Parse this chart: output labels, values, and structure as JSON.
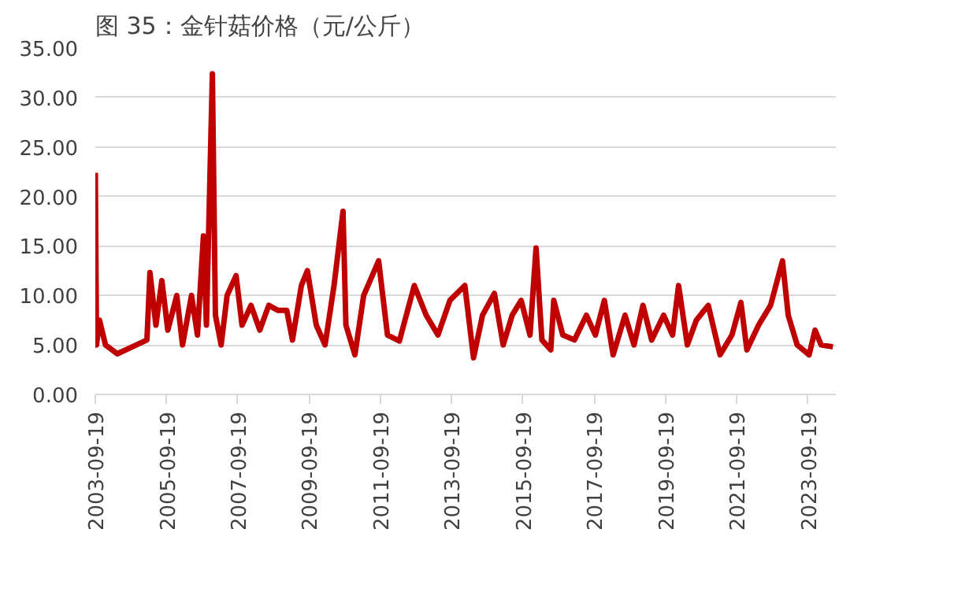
{
  "chart_data": {
    "type": "line",
    "title": "图 35：金针菇价格（元/公斤）",
    "x": [
      "2003-09-19",
      "2003-10",
      "2003-11",
      "2004-01",
      "2004-05",
      "2005-03",
      "2005-04",
      "2005-06",
      "2005-08",
      "2005-10",
      "2006-01",
      "2006-03",
      "2006-06",
      "2006-08",
      "2006-10",
      "2006-11",
      "2007-01",
      "2007-02",
      "2007-04",
      "2007-06",
      "2007-09",
      "2007-11",
      "2008-02",
      "2008-05",
      "2008-08",
      "2008-11",
      "2009-02",
      "2009-04",
      "2009-07",
      "2009-09",
      "2009-12",
      "2010-03",
      "2010-06",
      "2010-09",
      "2010-10",
      "2011-01",
      "2011-04",
      "2011-09",
      "2011-12",
      "2012-04",
      "2012-09",
      "2013-01",
      "2013-05",
      "2013-09",
      "2014-02",
      "2014-05",
      "2014-08",
      "2014-12",
      "2015-03",
      "2015-06",
      "2015-09",
      "2015-12",
      "2016-02",
      "2016-04",
      "2016-07",
      "2016-08",
      "2016-11",
      "2017-03",
      "2017-07",
      "2017-10",
      "2018-01",
      "2018-04",
      "2018-08",
      "2018-11",
      "2019-02",
      "2019-05",
      "2019-09",
      "2019-12",
      "2020-02",
      "2020-05",
      "2020-08",
      "2020-12",
      "2021-04",
      "2021-08",
      "2021-11",
      "2022-01",
      "2022-05",
      "2022-09",
      "2023-01",
      "2023-03",
      "2023-06",
      "2023-10",
      "2023-12",
      "2024-02",
      "2024-06"
    ],
    "series": [
      {
        "color": "#c00000",
        "values": [
          22.4,
          5,
          7.5,
          5,
          4.1,
          5.5,
          12.3,
          7,
          11.5,
          6.5,
          10,
          5,
          10,
          6,
          16,
          7,
          32.4,
          8,
          5,
          10,
          12,
          7,
          9,
          6.5,
          9,
          8.5,
          8.5,
          5.5,
          11,
          12.5,
          7,
          5,
          11,
          18.5,
          7,
          4,
          10,
          13.5,
          6,
          5.4,
          11,
          8,
          6,
          9.5,
          11,
          3.7,
          8,
          10.2,
          5,
          8,
          9.5,
          6,
          14.8,
          5.5,
          4.5,
          9.5,
          6,
          5.5,
          8,
          6,
          9.5,
          4,
          8,
          5,
          9,
          5.5,
          8,
          6,
          11,
          5,
          7.5,
          9,
          4,
          6,
          9.3,
          4.5,
          7,
          9,
          13.5,
          8,
          5,
          4,
          6.5,
          5,
          4.8
        ]
      }
    ],
    "xlim": [
      "2003-09-19",
      "2024-07-01"
    ],
    "xticks": [
      "2003-09-19",
      "2005-09-19",
      "2007-09-19",
      "2009-09-19",
      "2011-09-19",
      "2013-09-19",
      "2015-09-19",
      "2017-09-19",
      "2019-09-19",
      "2021-09-19",
      "2023-09-19"
    ],
    "ylim": [
      0,
      35
    ],
    "yticks": [
      {
        "value": 0,
        "label": "0.00"
      },
      {
        "value": 5,
        "label": "5.00"
      },
      {
        "value": 10,
        "label": "10.00"
      },
      {
        "value": 15,
        "label": "15.00"
      },
      {
        "value": 20,
        "label": "20.00"
      },
      {
        "value": 25,
        "label": "25.00"
      },
      {
        "value": 30,
        "label": "30.00"
      },
      {
        "value": 35,
        "label": "35.00"
      }
    ],
    "grid": "y",
    "line_style": "solid",
    "marker": "none"
  }
}
